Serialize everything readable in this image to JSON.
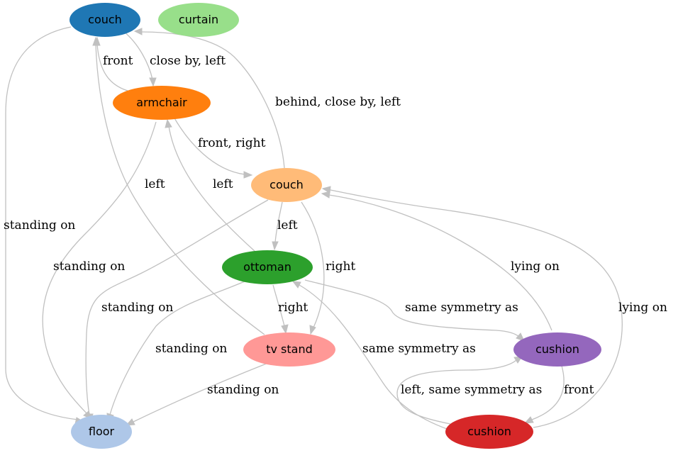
{
  "nodes": {
    "couch_top": {
      "label": "couch",
      "color": "#1f77b4",
      "text_color": "#000000"
    },
    "curtain": {
      "label": "curtain",
      "color": "#98df8a",
      "text_color": "#000000"
    },
    "armchair": {
      "label": "armchair",
      "color": "#ff7f0e",
      "text_color": "#000000"
    },
    "couch_mid": {
      "label": "couch",
      "color": "#ffbb78",
      "text_color": "#000000"
    },
    "ottoman": {
      "label": "ottoman",
      "color": "#2ca02c",
      "text_color": "#000000"
    },
    "tv_stand": {
      "label": "tv stand",
      "color": "#ff9896",
      "text_color": "#000000"
    },
    "cushion_right": {
      "label": "cushion",
      "color": "#9467bd",
      "text_color": "#000000"
    },
    "floor": {
      "label": "floor",
      "color": "#aec7e8",
      "text_color": "#000000"
    },
    "cushion_bottom": {
      "label": "cushion",
      "color": "#d62728",
      "text_color": "#000000"
    }
  },
  "edges": {
    "armchair_couch_top": {
      "label": "front"
    },
    "couch_top_armchair": {
      "label": "close by, left"
    },
    "couch_mid_couch_top": {
      "label": "behind, close by, left"
    },
    "armchair_couch_mid": {
      "label": "front, right"
    },
    "tv_stand_couch_top": {
      "label": "left"
    },
    "ottoman_armchair": {
      "label": "left"
    },
    "couch_top_floor": {
      "label": "standing on"
    },
    "armchair_floor": {
      "label": "standing on"
    },
    "couch_mid_ottoman": {
      "label": "left"
    },
    "couch_mid_tv_stand": {
      "label": "right"
    },
    "cushion_right_couch_mid": {
      "label": "lying on"
    },
    "cushion_bottom_couch_mid": {
      "label": "lying on"
    },
    "couch_mid_floor": {
      "label": "standing on"
    },
    "ottoman_tv_stand": {
      "label": "right"
    },
    "ottoman_cushion_right": {
      "label": "same symmetry as"
    },
    "cushion_bottom_ottoman": {
      "label": "same symmetry as"
    },
    "ottoman_floor": {
      "label": "standing on"
    },
    "tv_stand_floor": {
      "label": "standing on"
    },
    "cushion_bottom_cushion_right": {
      "label": "left, same symmetry as"
    },
    "cushion_right_cushion_bottom": {
      "label": "front"
    }
  },
  "style": {
    "edge_color": "#c0c0c0",
    "background": "#ffffff"
  }
}
